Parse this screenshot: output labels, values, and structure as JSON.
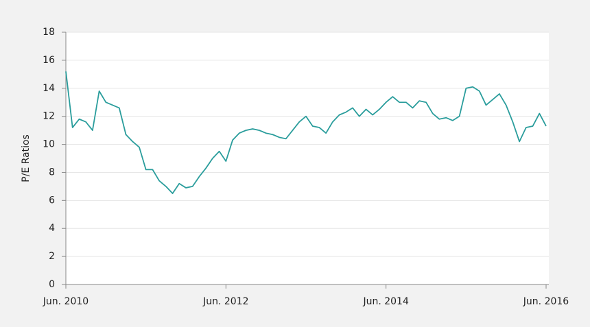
{
  "chart_data": {
    "type": "line",
    "y_label": "P/E Ratios",
    "x": [
      "2010-06",
      "2010-07",
      "2010-08",
      "2010-09",
      "2010-10",
      "2010-11",
      "2010-12",
      "2011-01",
      "2011-02",
      "2011-03",
      "2011-04",
      "2011-05",
      "2011-06",
      "2011-07",
      "2011-08",
      "2011-09",
      "2011-10",
      "2011-11",
      "2011-12",
      "2012-01",
      "2012-02",
      "2012-03",
      "2012-04",
      "2012-05",
      "2012-06",
      "2012-07",
      "2012-08",
      "2012-09",
      "2012-10",
      "2012-11",
      "2012-12",
      "2013-01",
      "2013-02",
      "2013-03",
      "2013-04",
      "2013-05",
      "2013-06",
      "2013-07",
      "2013-08",
      "2013-09",
      "2013-10",
      "2013-11",
      "2013-12",
      "2014-01",
      "2014-02",
      "2014-03",
      "2014-04",
      "2014-05",
      "2014-06",
      "2014-07",
      "2014-08",
      "2014-09",
      "2014-10",
      "2014-11",
      "2014-12",
      "2015-01",
      "2015-02",
      "2015-03",
      "2015-04",
      "2015-05",
      "2015-06",
      "2015-07",
      "2015-08",
      "2015-09",
      "2015-10",
      "2015-11",
      "2015-12",
      "2016-01",
      "2016-02",
      "2016-03",
      "2016-04",
      "2016-05",
      "2016-06"
    ],
    "series": [
      {
        "name": "P/E Ratios",
        "color": "#2a9d9c",
        "values": [
          15.2,
          11.2,
          11.8,
          11.6,
          11.0,
          13.8,
          13.0,
          12.8,
          12.6,
          10.7,
          10.2,
          9.8,
          8.2,
          8.2,
          7.4,
          7.0,
          6.5,
          7.2,
          6.9,
          7.0,
          7.7,
          8.3,
          9.0,
          9.5,
          8.8,
          10.3,
          10.8,
          11.0,
          11.1,
          11.0,
          10.8,
          10.7,
          10.5,
          10.4,
          11.0,
          11.6,
          12.0,
          11.3,
          11.2,
          10.8,
          11.6,
          12.1,
          12.3,
          12.6,
          12.0,
          12.5,
          12.1,
          12.5,
          13.0,
          13.4,
          13.0,
          13.0,
          12.6,
          13.1,
          13.0,
          12.2,
          11.8,
          11.9,
          11.7,
          12.0,
          14.0,
          14.1,
          13.8,
          12.8,
          13.2,
          13.6,
          12.8,
          11.6,
          10.2,
          11.2,
          11.3,
          12.2,
          11.3
        ]
      }
    ],
    "xlim": [
      "2010-06",
      "2016-06"
    ],
    "xticks": [
      {
        "value": "2010-06",
        "label": "Jun. 2010"
      },
      {
        "value": "2012-06",
        "label": "Jun. 2012"
      },
      {
        "value": "2014-06",
        "label": "Jun. 2014"
      },
      {
        "value": "2016-06",
        "label": "Jun. 2016"
      }
    ],
    "ylim": [
      0,
      18
    ],
    "yticks": [
      0,
      2,
      4,
      6,
      8,
      10,
      12,
      14,
      16,
      18
    ],
    "grid": true
  }
}
